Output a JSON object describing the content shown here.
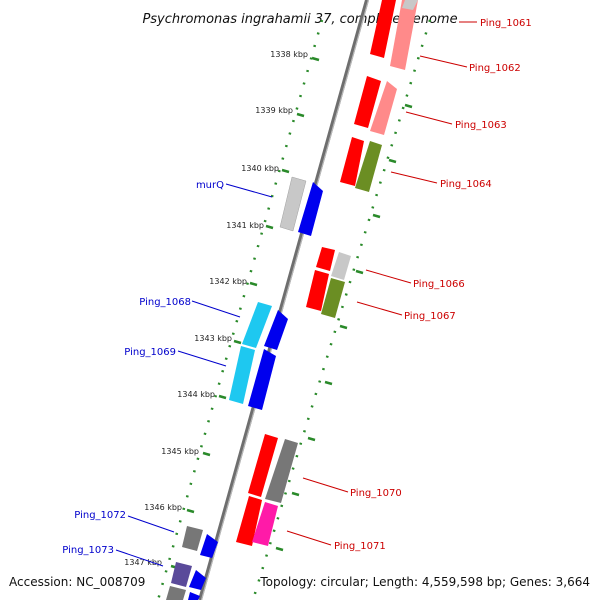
{
  "title": "Psychromonas ingrahamii 37, complete genome",
  "footer": {
    "accession": "Accession: NC_008709",
    "topology": "Topology: circular; Length: 4,559,598 bp; Genes: 3,664"
  },
  "ticks": [
    "1338 kbp",
    "1339 kbp",
    "1340 kbp",
    "1341 kbp",
    "1342 kbp",
    "1343 kbp",
    "1344 kbp",
    "1345 kbp",
    "1346 kbp",
    "1347 kbp"
  ],
  "genes_right": [
    "Ping_1061",
    "Ping_1062",
    "Ping_1063",
    "Ping_1064",
    "Ping_1066",
    "Ping_1067",
    "Ping_1070",
    "Ping_1071"
  ],
  "genes_left": [
    "murQ",
    "Ping_1068",
    "Ping_1069",
    "Ping_1072",
    "Ping_1073"
  ],
  "colors": {
    "red": "#ff0000",
    "pink": "#ff8a8a",
    "olive": "#6b8e23",
    "gray": "#777777",
    "lightgray": "#c8c8c8",
    "blue": "#0000ee",
    "cyan": "#1ec8f0",
    "magenta": "#ff1aa8",
    "purple": "#5a4a9a",
    "label_red": "#cc0000",
    "label_blue": "#0000cc",
    "dot_green": "#2a8a2a",
    "backbone": "#888888"
  }
}
